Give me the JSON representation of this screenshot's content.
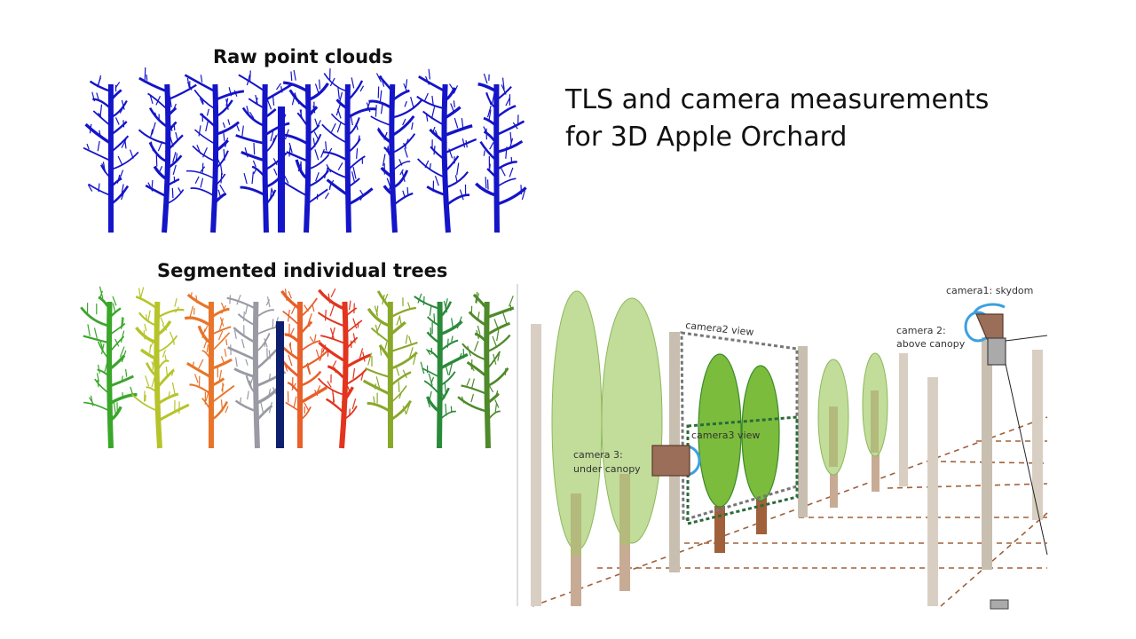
{
  "title": {
    "line1": "TLS and camera measurements",
    "line2": "for 3D Apple Orchard"
  },
  "panels": {
    "raw": "Raw point clouds",
    "segmented": "Segmented individual trees"
  },
  "diagram": {
    "camera1": "camera1: skydom",
    "camera2_line1": "camera 2:",
    "camera2_line2": "above canopy",
    "camera3_line1": "camera 3:",
    "camera3_line2": "under canopy",
    "camera2_view": "camera2 view",
    "camera3_view": "camera3 view"
  },
  "colors": {
    "raw_points": "#1414c8",
    "segment_colors": [
      "#3aa62a",
      "#b6c42a",
      "#e8752a",
      "#9a9aa4",
      "#0e1f6e",
      "#8aa82a",
      "#e2341e",
      "#e8602a",
      "#2a8a3a",
      "#4e8a2a"
    ],
    "canopy_light": "#c2dc9a",
    "canopy_dark": "#7cbc3c",
    "trunk": "#c8ab94",
    "post": "#d8cfc2",
    "camera_box": "#9a6e58",
    "lens": "#3aa0e0"
  }
}
